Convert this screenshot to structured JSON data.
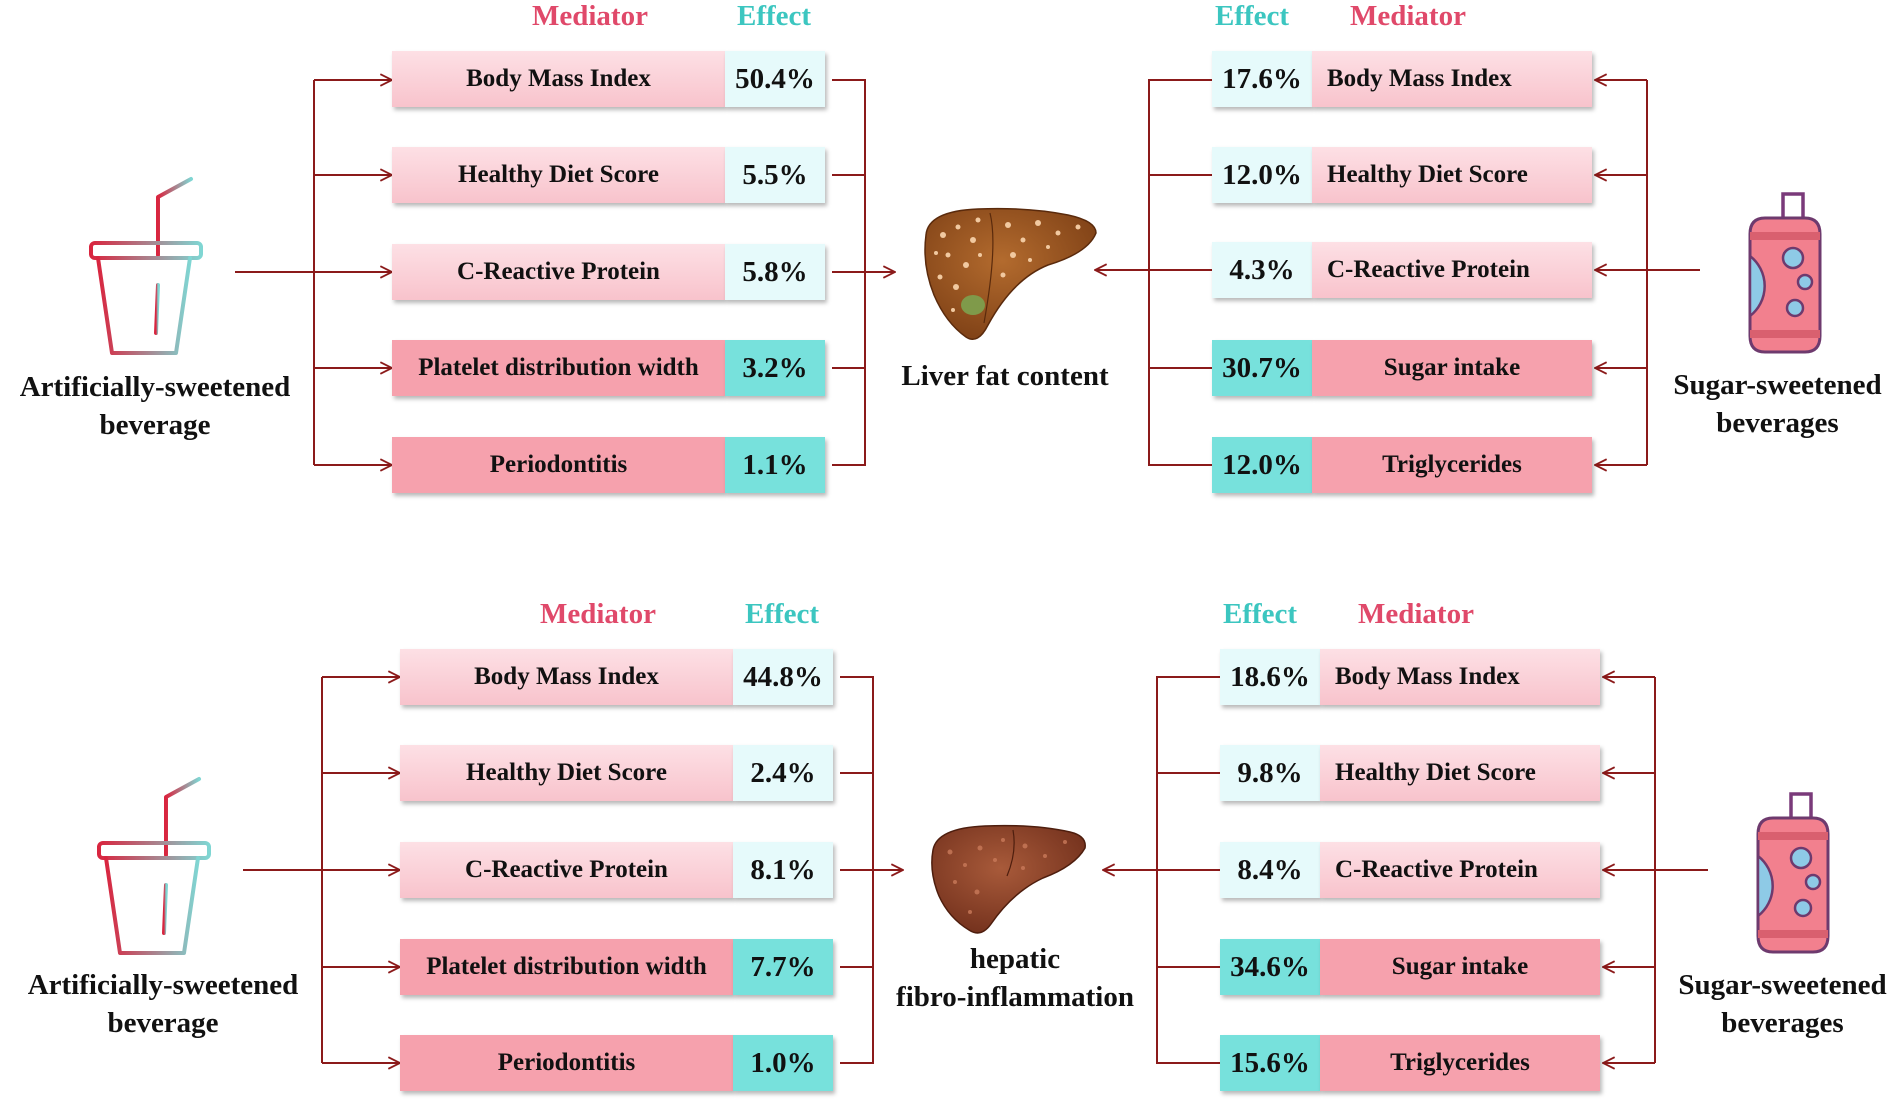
{
  "headers": {
    "mediator": "Mediator",
    "effect": "Effect"
  },
  "outcomes": {
    "top": "Liver fat content",
    "bottom_line1": "hepatic",
    "bottom_line2": "fibro-inflammation"
  },
  "exposures": {
    "asb_line1": "Artificially-sweetened",
    "asb_line2": "beverage",
    "ssb_line1": "Sugar-sweetened",
    "ssb_line2": "beverages"
  },
  "panels": {
    "top_left": [
      {
        "mediator": "Body Mass Index",
        "effect": "50.4%"
      },
      {
        "mediator": "Healthy Diet Score",
        "effect": "5.5%"
      },
      {
        "mediator": "C-Reactive Protein",
        "effect": "5.8%"
      },
      {
        "mediator": "Platelet distribution width",
        "effect": "3.2%"
      },
      {
        "mediator": "Periodontitis",
        "effect": "1.1%"
      }
    ],
    "top_right": [
      {
        "mediator": "Body Mass Index",
        "effect": "17.6%"
      },
      {
        "mediator": "Healthy Diet Score",
        "effect": "12.0%"
      },
      {
        "mediator": "C-Reactive Protein",
        "effect": "4.3%"
      },
      {
        "mediator": "Sugar intake",
        "effect": "30.7%"
      },
      {
        "mediator": "Triglycerides",
        "effect": "12.0%"
      }
    ],
    "bottom_left": [
      {
        "mediator": "Body Mass Index",
        "effect": "44.8%"
      },
      {
        "mediator": "Healthy Diet Score",
        "effect": "2.4%"
      },
      {
        "mediator": "C-Reactive Protein",
        "effect": "8.1%"
      },
      {
        "mediator": "Platelet distribution width",
        "effect": "7.7%"
      },
      {
        "mediator": "Periodontitis",
        "effect": "1.0%"
      }
    ],
    "bottom_right": [
      {
        "mediator": "Body Mass Index",
        "effect": "18.6%"
      },
      {
        "mediator": "Healthy Diet Score",
        "effect": "9.8%"
      },
      {
        "mediator": "C-Reactive Protein",
        "effect": "8.4%"
      },
      {
        "mediator": "Sugar intake",
        "effect": "34.6%"
      },
      {
        "mediator": "Triglycerides",
        "effect": "15.6%"
      }
    ]
  },
  "icons": {
    "cup": "drink-cup-icon",
    "can": "soda-can-icon",
    "liver_top": "fatty-liver-icon",
    "liver_bottom": "fibrotic-liver-icon"
  },
  "colors": {
    "mediator_header": "#e0496a",
    "effect_header": "#3cc6c0",
    "arrow": "#8b1a1a",
    "mediator_light": "#fbd3da",
    "mediator_dark": "#f6a1ad",
    "effect_light": "#e6fafb",
    "effect_dark": "#77e1dc"
  }
}
